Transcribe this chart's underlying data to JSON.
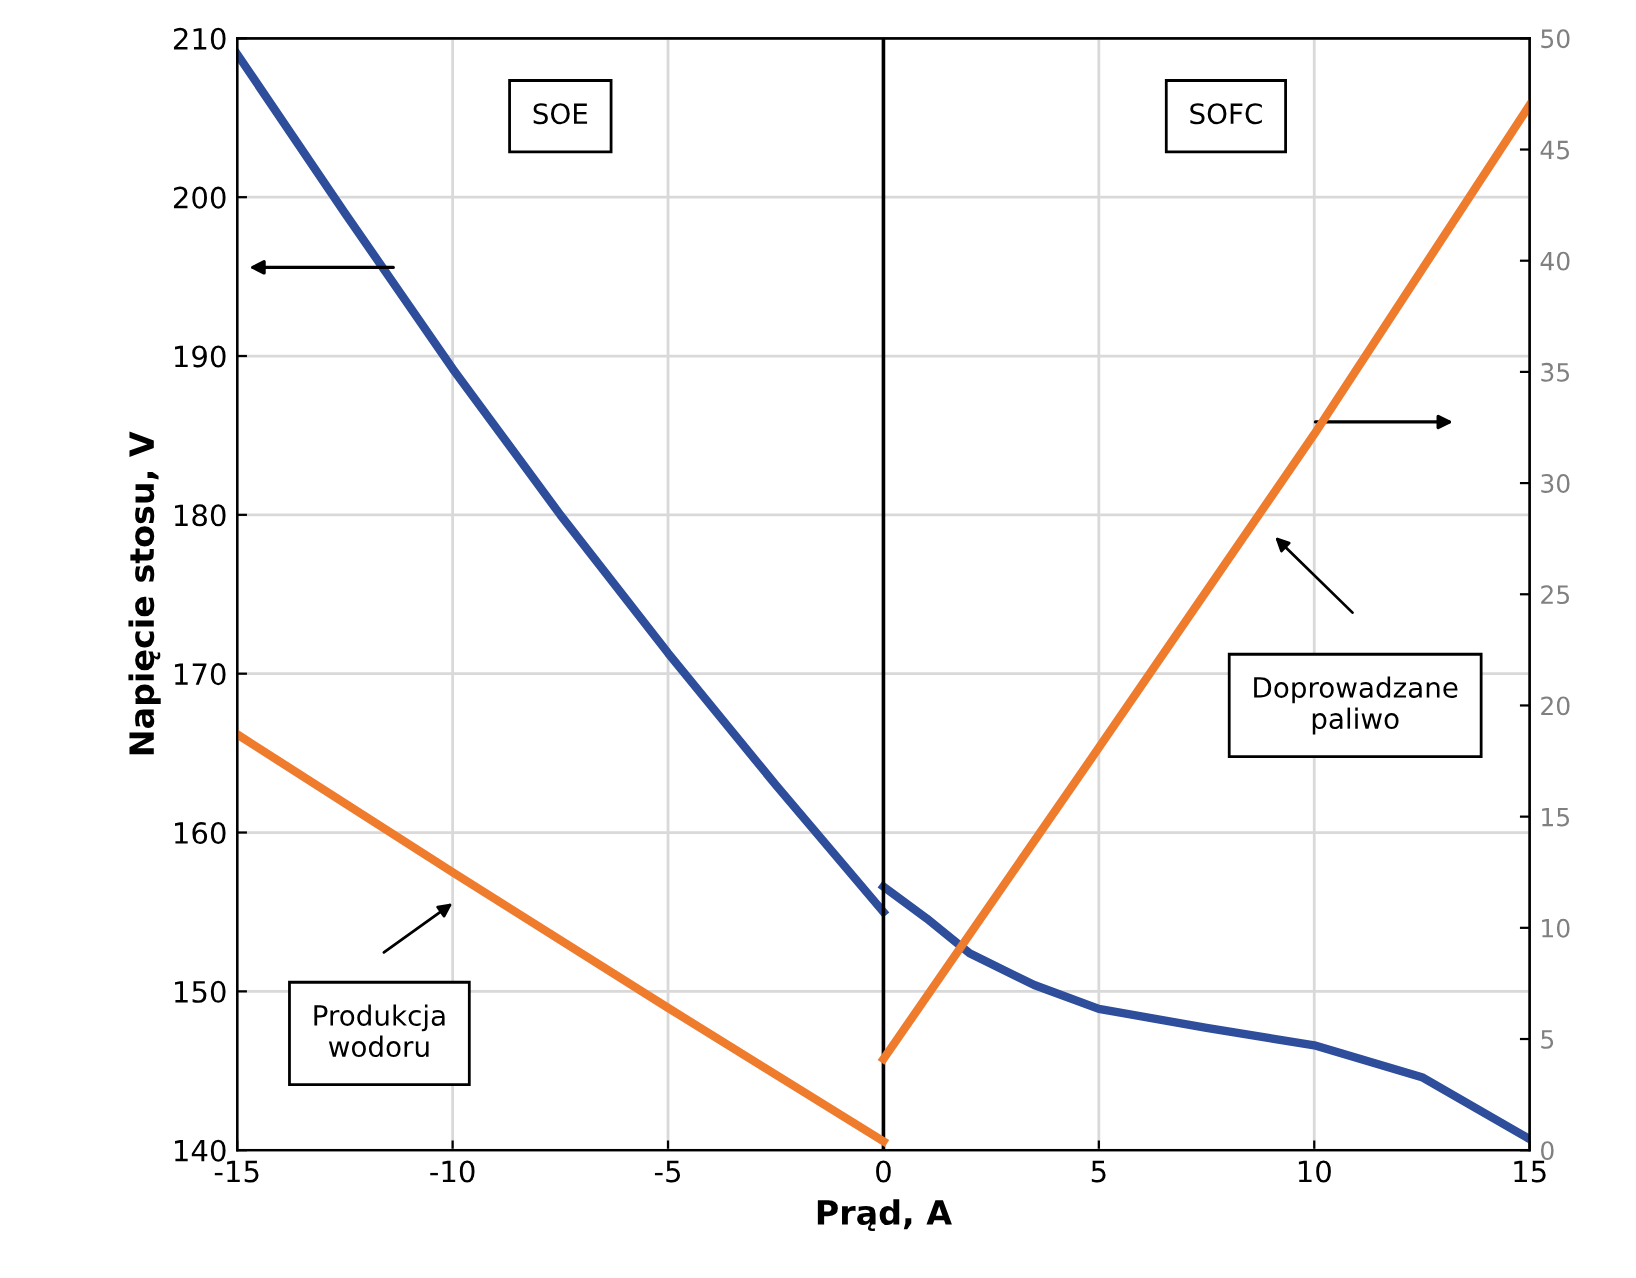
{
  "chart_data": {
    "type": "line",
    "xlabel": "Prąd, A",
    "ylabel": "Napięcie stosu, V",
    "series": [
      {
        "color": "#2e4e9b",
        "x": [
          -15,
          -12.5,
          -10,
          -7.5,
          -5,
          -2.5,
          0
        ],
        "values": [
          209,
          199,
          189.2,
          180,
          171.3,
          163,
          155
        ]
      },
      {
        "color": "#2e4e9b",
        "x": [
          0,
          1,
          2,
          3.5,
          5,
          7.5,
          10,
          12.5,
          15
        ],
        "values": [
          156.6,
          154.6,
          152.4,
          150.4,
          148.9,
          147.7,
          146.6,
          144.6,
          140.7
        ]
      },
      {
        "color": "#ef7b2d",
        "axis": "y2",
        "x": [
          -15,
          -10,
          -5,
          0
        ],
        "values": [
          18.7,
          12.5,
          6.4,
          0.4
        ]
      },
      {
        "color": "#ef7b2d",
        "axis": "y2",
        "x": [
          0,
          5,
          10,
          15
        ],
        "values": [
          4.1,
          18.1,
          32.2,
          47
        ]
      }
    ],
    "xlim": [
      -15,
      15
    ],
    "xticks": [
      -15,
      -10,
      -5,
      0,
      5,
      10,
      15
    ],
    "ylim": [
      140,
      210
    ],
    "yticks": [
      140,
      150,
      160,
      170,
      180,
      190,
      200,
      210
    ],
    "y2lim": [
      0,
      50
    ],
    "y2ticks": [
      0,
      5,
      10,
      15,
      20,
      25,
      30,
      35,
      40,
      45,
      50
    ],
    "ref_lines": [
      {
        "axis": "x",
        "value": 0,
        "color": "#000000"
      }
    ],
    "annotations": [
      "SOE",
      "SOFC",
      "Produkcja\nwodoru",
      "Doprowadzane\npaliwo"
    ],
    "grid": true,
    "legend": false,
    "marker": "none",
    "line_style": "solid"
  }
}
